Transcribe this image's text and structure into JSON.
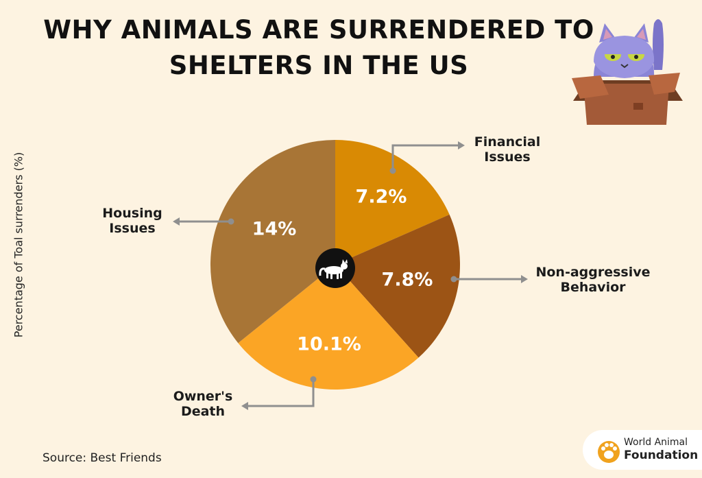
{
  "header": {
    "title_line1": "WHY ANIMALS ARE SURRENDERED TO",
    "title_line2": "SHELTERS IN THE US"
  },
  "chart_data": {
    "type": "pie",
    "ylabel": "Percentage of Toal surrenders (%)",
    "slices": [
      {
        "label_line1": "Financial",
        "label_line2": "Issues",
        "value": 7.2,
        "value_label": "7.2%",
        "color": "#d98a04"
      },
      {
        "label_line1": "Non-aggressive",
        "label_line2": "Behavior",
        "value": 7.8,
        "value_label": "7.8%",
        "color": "#9c5415"
      },
      {
        "label_line1": "Owner's",
        "label_line2": "Death",
        "value": 10.1,
        "value_label": "10.1%",
        "color": "#fba525"
      },
      {
        "label_line1": "Housing",
        "label_line2": "Issues",
        "value": 14,
        "value_label": "14%",
        "color": "#a87536"
      }
    ]
  },
  "footer": {
    "source": "Source: Best Friends",
    "logo_line1": "World Animal",
    "logo_line2": "Foundation"
  },
  "icons": {
    "center": "cat-icon",
    "illustration": "cat-in-box-icon",
    "logo": "paw-logo-icon"
  }
}
